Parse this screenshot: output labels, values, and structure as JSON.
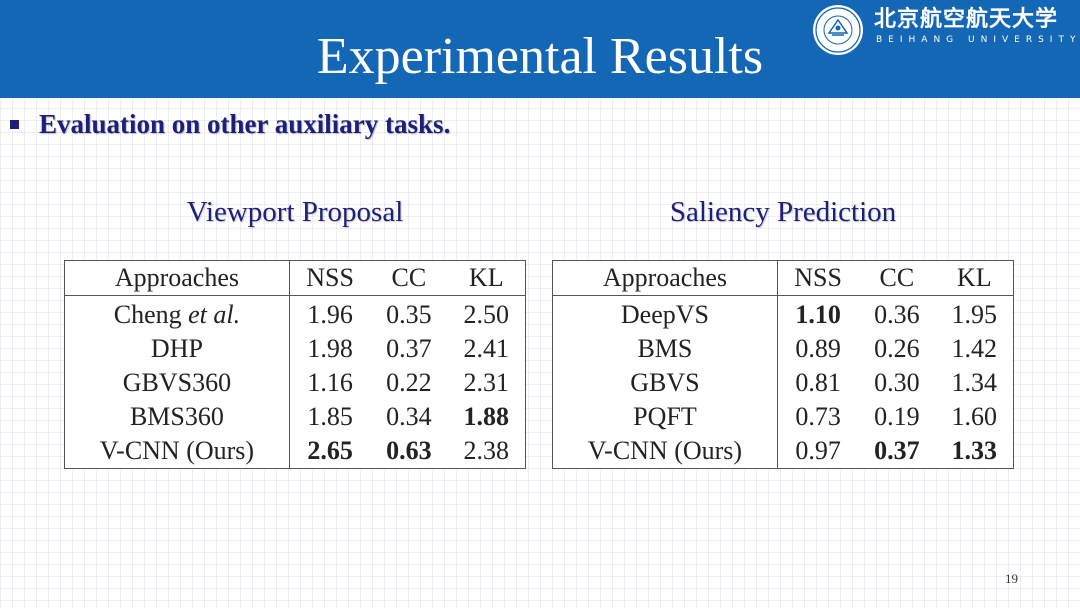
{
  "slide": {
    "title": "Experimental Results",
    "page_number": "19",
    "colors": {
      "header": "#1467b5",
      "accent_text": "#1f1f7a",
      "background": "#ffffff"
    }
  },
  "logo": {
    "name_cn": "北京航空航天大学",
    "name_en": "BEIHANG UNIVERSITY",
    "seal_icon": "university-seal-icon"
  },
  "bullet": {
    "text": "Evaluation on other auxiliary tasks."
  },
  "tables": {
    "viewport": {
      "caption": "Viewport Proposal",
      "headers": [
        "Approaches",
        "NSS",
        "CC",
        "KL"
      ],
      "rows": [
        {
          "name": "Cheng",
          "name_em": "et al.",
          "nss": "1.96",
          "cc": "0.35",
          "kl": "2.50"
        },
        {
          "name": "DHP",
          "nss": "1.98",
          "cc": "0.37",
          "kl": "2.41"
        },
        {
          "name": "GBVS360",
          "nss": "1.16",
          "cc": "0.22",
          "kl": "2.31"
        },
        {
          "name": "BMS360",
          "nss": "1.85",
          "cc": "0.34",
          "kl": "1.88"
        },
        {
          "name": "V-CNN (Ours)",
          "nss": "2.65",
          "cc": "0.63",
          "kl": "2.38"
        }
      ]
    },
    "saliency": {
      "caption": "Saliency Prediction",
      "headers": [
        "Approaches",
        "NSS",
        "CC",
        "KL"
      ],
      "rows": [
        {
          "name": "DeepVS",
          "nss": "1.10",
          "cc": "0.36",
          "kl": "1.95"
        },
        {
          "name": "BMS",
          "nss": "0.89",
          "cc": "0.26",
          "kl": "1.42"
        },
        {
          "name": "GBVS",
          "nss": "0.81",
          "cc": "0.30",
          "kl": "1.34"
        },
        {
          "name": "PQFT",
          "nss": "0.73",
          "cc": "0.19",
          "kl": "1.60"
        },
        {
          "name": "V-CNN (Ours)",
          "nss": "0.97",
          "cc": "0.37",
          "kl": "1.33"
        }
      ]
    }
  }
}
